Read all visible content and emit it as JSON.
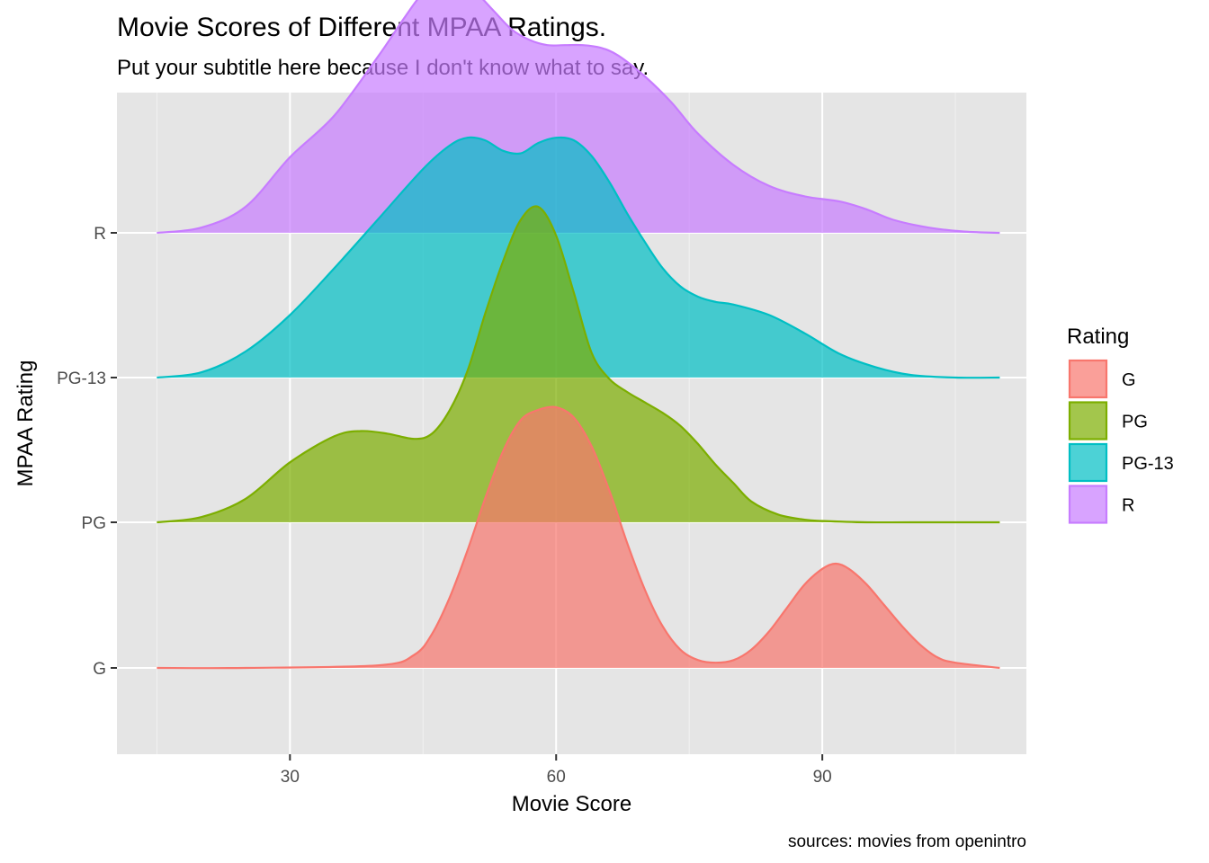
{
  "chart_data": {
    "type": "ridgeline-density",
    "title": "Movie Scores of Different MPAA Ratings.",
    "subtitle": "Put your subtitle here because I don't know what to say.",
    "caption": "sources: movies from openintro",
    "xlabel": "Movie Score",
    "ylabel": "MPAA Rating",
    "xlim": [
      10.5,
      113
    ],
    "x_ticks": [
      30,
      60,
      90
    ],
    "x_minor_ticks": [
      15,
      45,
      75,
      105
    ],
    "y_categories": [
      "G",
      "PG",
      "PG-13",
      "R"
    ],
    "grid": true,
    "legend": {
      "title": "Rating",
      "position": "right",
      "entries": [
        "G",
        "PG",
        "PG-13",
        "R"
      ]
    },
    "series": [
      {
        "name": "G",
        "color": "#F8766D",
        "x": [
          15,
          25,
          40,
          44,
          46,
          48,
          50,
          52,
          54,
          56,
          58,
          60,
          62,
          64,
          66,
          68,
          70,
          72,
          74,
          76,
          78,
          80,
          82,
          84,
          86,
          88,
          90,
          91.5,
          93,
          95,
          97,
          99,
          101,
          103,
          105,
          110
        ],
        "height": [
          0,
          0,
          0.01,
          0.05,
          0.13,
          0.27,
          0.45,
          0.65,
          0.83,
          0.95,
          0.99,
          1.0,
          0.96,
          0.85,
          0.68,
          0.48,
          0.3,
          0.16,
          0.07,
          0.03,
          0.02,
          0.03,
          0.07,
          0.14,
          0.23,
          0.32,
          0.38,
          0.4,
          0.38,
          0.32,
          0.24,
          0.16,
          0.09,
          0.04,
          0.02,
          0
        ]
      },
      {
        "name": "PG",
        "color": "#7CAE00",
        "x": [
          15,
          20,
          25,
          30,
          35,
          38,
          41,
          44,
          46,
          48,
          50,
          52,
          54,
          56,
          58,
          60,
          62,
          64,
          66,
          68,
          70,
          72,
          74,
          76,
          78,
          80,
          82,
          85,
          88,
          90,
          95,
          100,
          110
        ],
        "height": [
          0,
          0.02,
          0.09,
          0.23,
          0.33,
          0.35,
          0.34,
          0.32,
          0.34,
          0.43,
          0.58,
          0.8,
          1.0,
          1.16,
          1.21,
          1.1,
          0.88,
          0.65,
          0.55,
          0.5,
          0.46,
          0.42,
          0.37,
          0.3,
          0.22,
          0.15,
          0.08,
          0.03,
          0.01,
          0.005,
          0,
          0,
          0
        ]
      },
      {
        "name": "PG-13",
        "color": "#00BFC4",
        "x": [
          15,
          20,
          25,
          30,
          35,
          40,
          45,
          48,
          50,
          52,
          54,
          56,
          58,
          60,
          62,
          64,
          66,
          68,
          70,
          72,
          74,
          76,
          78,
          80,
          84,
          88,
          92,
          96,
          100,
          105,
          110
        ],
        "height": [
          0,
          0.02,
          0.1,
          0.24,
          0.42,
          0.61,
          0.8,
          0.89,
          0.92,
          0.91,
          0.87,
          0.86,
          0.9,
          0.92,
          0.91,
          0.85,
          0.75,
          0.63,
          0.52,
          0.42,
          0.35,
          0.31,
          0.29,
          0.28,
          0.24,
          0.17,
          0.09,
          0.04,
          0.01,
          0,
          0
        ]
      },
      {
        "name": "R",
        "color": "#C77CFF",
        "x": [
          15,
          20,
          25,
          30,
          35,
          40,
          43,
          45,
          47,
          49,
          51,
          53,
          55,
          57,
          59,
          61,
          63,
          65,
          67,
          70,
          73,
          76,
          80,
          84,
          88,
          92,
          95,
          98,
          102,
          106,
          110
        ],
        "height": [
          0,
          0.02,
          0.1,
          0.29,
          0.45,
          0.68,
          0.83,
          0.92,
          0.96,
          0.96,
          0.92,
          0.85,
          0.78,
          0.74,
          0.72,
          0.72,
          0.72,
          0.71,
          0.68,
          0.6,
          0.5,
          0.38,
          0.26,
          0.18,
          0.14,
          0.12,
          0.09,
          0.05,
          0.02,
          0.005,
          0
        ]
      }
    ]
  }
}
